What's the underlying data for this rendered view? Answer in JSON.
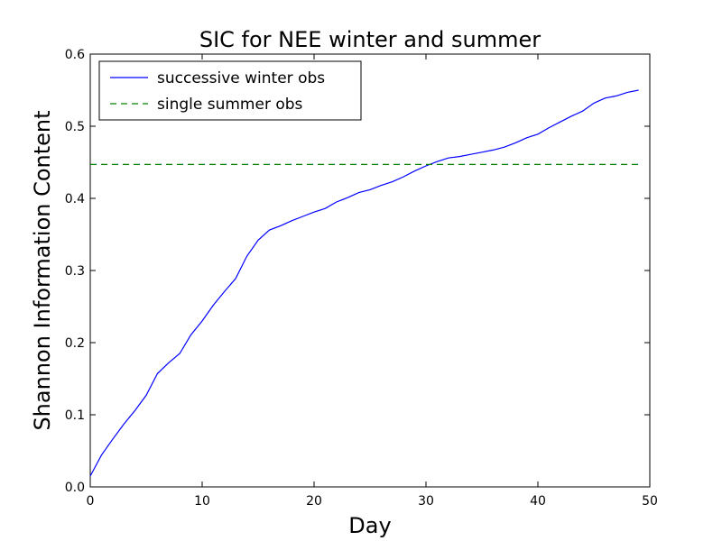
{
  "chart_data": {
    "type": "line",
    "title": "SIC for NEE winter and summer",
    "xlabel": "Day",
    "ylabel": "Shannon Information Content",
    "xlim": [
      0,
      50
    ],
    "ylim": [
      0.0,
      0.6
    ],
    "xticks": [
      0,
      10,
      20,
      30,
      40,
      50
    ],
    "xtick_labels": [
      "0",
      "10",
      "20",
      "30",
      "40",
      "50"
    ],
    "yticks": [
      0.0,
      0.1,
      0.2,
      0.3,
      0.4,
      0.5,
      0.6
    ],
    "ytick_labels": [
      "0.0",
      "0.1",
      "0.2",
      "0.3",
      "0.4",
      "0.5",
      "0.6"
    ],
    "grid": false,
    "legend": "top-left",
    "series": [
      {
        "name": "successive winter obs",
        "color": "#0000ff",
        "style": "solid",
        "x": [
          0,
          1,
          2,
          3,
          4,
          5,
          6,
          7,
          8,
          9,
          10,
          11,
          12,
          13,
          14,
          15,
          16,
          17,
          18,
          19,
          20,
          21,
          22,
          23,
          24,
          25,
          26,
          27,
          28,
          29,
          30,
          31,
          32,
          33,
          34,
          35,
          36,
          37,
          38,
          39,
          40,
          41,
          42,
          43,
          44,
          45,
          46,
          47,
          48,
          49
        ],
        "y": [
          0.015,
          0.044,
          0.066,
          0.087,
          0.106,
          0.127,
          0.157,
          0.172,
          0.185,
          0.211,
          0.23,
          0.252,
          0.271,
          0.289,
          0.32,
          0.342,
          0.356,
          0.362,
          0.369,
          0.375,
          0.381,
          0.386,
          0.395,
          0.401,
          0.408,
          0.412,
          0.418,
          0.423,
          0.43,
          0.438,
          0.445,
          0.451,
          0.456,
          0.458,
          0.461,
          0.464,
          0.467,
          0.471,
          0.477,
          0.484,
          0.489,
          0.498,
          0.506,
          0.514,
          0.521,
          0.532,
          0.539,
          0.542,
          0.547,
          0.55
        ]
      },
      {
        "name": "single summer obs",
        "color": "#008000",
        "style": "dashed",
        "x": [
          0,
          49
        ],
        "y": [
          0.447,
          0.447
        ]
      }
    ]
  }
}
